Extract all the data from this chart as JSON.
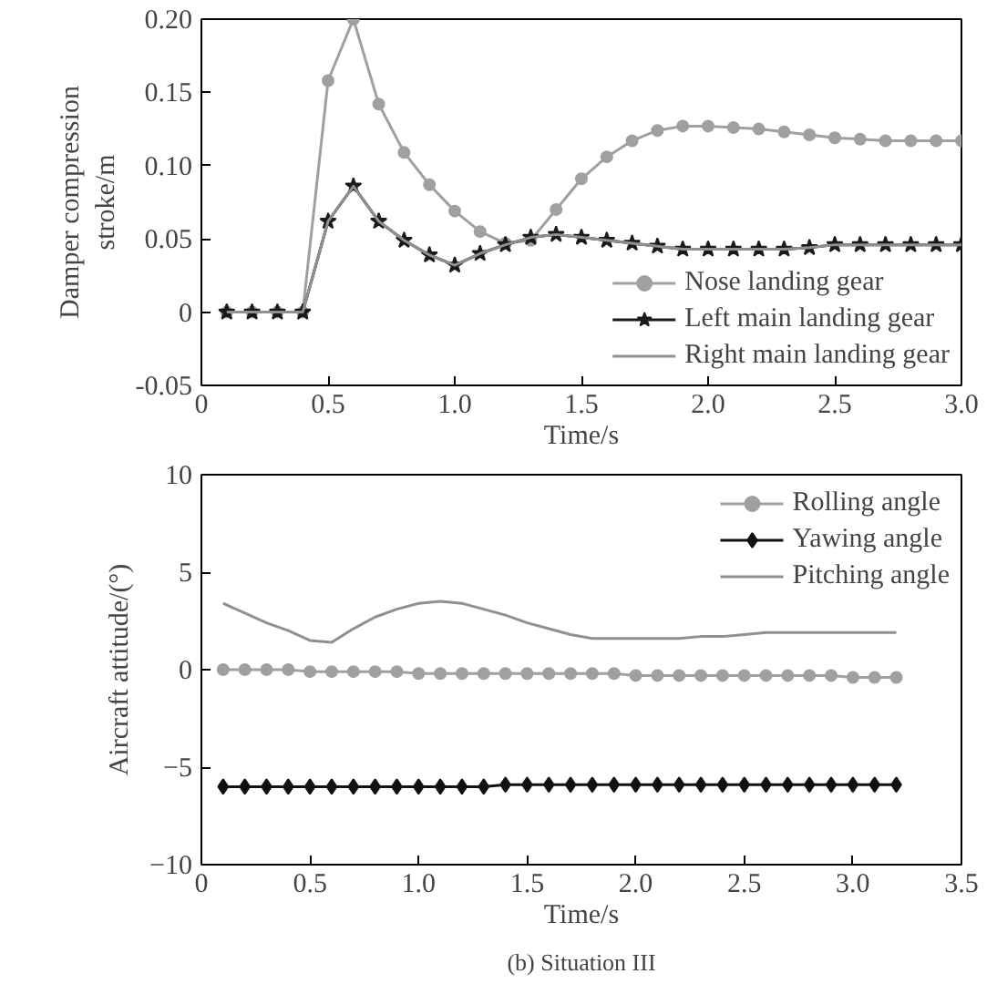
{
  "chart_data": [
    {
      "type": "line",
      "xlabel": "Time/s",
      "ylabel": "Damper compression\nstroke/m",
      "xlim": [
        0,
        3.0
      ],
      "ylim": [
        -0.05,
        0.2
      ],
      "xticks": [
        0,
        {
          "value": 0.5,
          "label": "0.5"
        },
        {
          "value": 1,
          "label": "1.0"
        },
        {
          "value": 1.5,
          "label": "1.5"
        },
        {
          "value": 2,
          "label": "2.0"
        },
        {
          "value": 2.5,
          "label": "2.5"
        },
        {
          "value": 3,
          "label": "3.0"
        }
      ],
      "yticks": [
        {
          "value": -0.05,
          "label": "-0.05"
        },
        0,
        {
          "value": 0.05,
          "label": "0.05"
        },
        {
          "value": 0.1,
          "label": "0.10"
        },
        {
          "value": 0.15,
          "label": "0.15"
        },
        {
          "value": 0.2,
          "label": "0.20"
        }
      ],
      "grid": false,
      "legend": "bottom right",
      "x": [
        0.1,
        0.2,
        0.3,
        0.4,
        0.5,
        0.6,
        0.7,
        0.8,
        0.9,
        1.0,
        1.1,
        1.2,
        1.3,
        1.4,
        1.5,
        1.6,
        1.7,
        1.8,
        1.9,
        2.0,
        2.1,
        2.2,
        2.3,
        2.4,
        2.5,
        2.6,
        2.7,
        2.8,
        2.9,
        3.0
      ],
      "series": [
        {
          "name": "Nose landing gear",
          "color": "#a0a0a0",
          "marker": "circle",
          "values": [
            0,
            0,
            0,
            0,
            0.158,
            0.2,
            0.142,
            0.109,
            0.087,
            0.069,
            0.055,
            0.047,
            0.049,
            0.07,
            0.091,
            0.106,
            0.117,
            0.124,
            0.127,
            0.127,
            0.126,
            0.125,
            0.123,
            0.121,
            0.119,
            0.118,
            0.117,
            0.117,
            0.117,
            0.117
          ]
        },
        {
          "name": "Left main landing gear",
          "color": "#1a1a1a",
          "marker": "star",
          "values": [
            0,
            0,
            0,
            0,
            0.062,
            0.086,
            0.062,
            0.049,
            0.039,
            0.032,
            0.04,
            0.046,
            0.051,
            0.053,
            0.051,
            0.049,
            0.047,
            0.045,
            0.043,
            0.043,
            0.043,
            0.043,
            0.043,
            0.044,
            0.046,
            0.046,
            0.046,
            0.046,
            0.046,
            0.046
          ]
        },
        {
          "name": "Right main landing gear",
          "color": "#909090",
          "marker": "none",
          "values": [
            0,
            0,
            0,
            0,
            0.062,
            0.086,
            0.062,
            0.049,
            0.039,
            0.032,
            0.04,
            0.046,
            0.051,
            0.053,
            0.051,
            0.049,
            0.047,
            0.045,
            0.043,
            0.043,
            0.043,
            0.043,
            0.043,
            0.044,
            0.046,
            0.046,
            0.046,
            0.046,
            0.046,
            0.046
          ]
        }
      ]
    },
    {
      "type": "line",
      "xlabel": "Time/s",
      "ylabel": "Aircraft attitude/(°)",
      "xlim": [
        0,
        3.5
      ],
      "ylim": [
        -10,
        10
      ],
      "xticks": [
        0,
        {
          "value": 0.5,
          "label": "0.5"
        },
        {
          "value": 1,
          "label": "1.0"
        },
        {
          "value": 1.5,
          "label": "1.5"
        },
        {
          "value": 2,
          "label": "2.0"
        },
        {
          "value": 2.5,
          "label": "2.5"
        },
        {
          "value": 3,
          "label": "3.0"
        },
        {
          "value": 3.5,
          "label": "3.5"
        }
      ],
      "yticks": [
        -10,
        -5,
        0,
        5,
        10
      ],
      "grid": false,
      "legend": "top right",
      "annotations": [
        "(b) Situation III"
      ],
      "x": [
        0.1,
        0.2,
        0.3,
        0.4,
        0.5,
        0.6,
        0.7,
        0.8,
        0.9,
        1.0,
        1.1,
        1.2,
        1.3,
        1.4,
        1.5,
        1.6,
        1.7,
        1.8,
        1.9,
        2.0,
        2.1,
        2.2,
        2.3,
        2.4,
        2.5,
        2.6,
        2.7,
        2.8,
        2.9,
        3.0,
        3.1,
        3.2
      ],
      "series": [
        {
          "name": "Rolling angle",
          "color": "#a0a0a0",
          "marker": "circle",
          "values": [
            0,
            0,
            0,
            0,
            -0.1,
            -0.1,
            -0.1,
            -0.1,
            -0.1,
            -0.2,
            -0.2,
            -0.2,
            -0.2,
            -0.2,
            -0.2,
            -0.2,
            -0.2,
            -0.2,
            -0.2,
            -0.3,
            -0.3,
            -0.3,
            -0.3,
            -0.3,
            -0.3,
            -0.3,
            -0.3,
            -0.3,
            -0.3,
            -0.4,
            -0.4,
            -0.4
          ]
        },
        {
          "name": "Yawing angle",
          "color": "#111111",
          "marker": "diamond",
          "values": [
            -6,
            -6,
            -6,
            -6,
            -6,
            -6,
            -6,
            -6,
            -6,
            -6,
            -6,
            -6,
            -6,
            -5.9,
            -5.9,
            -5.9,
            -5.9,
            -5.9,
            -5.9,
            -5.9,
            -5.9,
            -5.9,
            -5.9,
            -5.9,
            -5.9,
            -5.9,
            -5.9,
            -5.9,
            -5.9,
            -5.9,
            -5.9,
            -5.9
          ]
        },
        {
          "name": "Pitching angle",
          "color": "#909090",
          "marker": "none",
          "values": [
            3.4,
            2.9,
            2.4,
            2.0,
            1.5,
            1.4,
            2.1,
            2.7,
            3.1,
            3.4,
            3.5,
            3.4,
            3.1,
            2.8,
            2.4,
            2.1,
            1.8,
            1.6,
            1.6,
            1.6,
            1.6,
            1.6,
            1.7,
            1.7,
            1.8,
            1.9,
            1.9,
            1.9,
            1.9,
            1.9,
            1.9,
            1.9
          ]
        }
      ]
    }
  ]
}
